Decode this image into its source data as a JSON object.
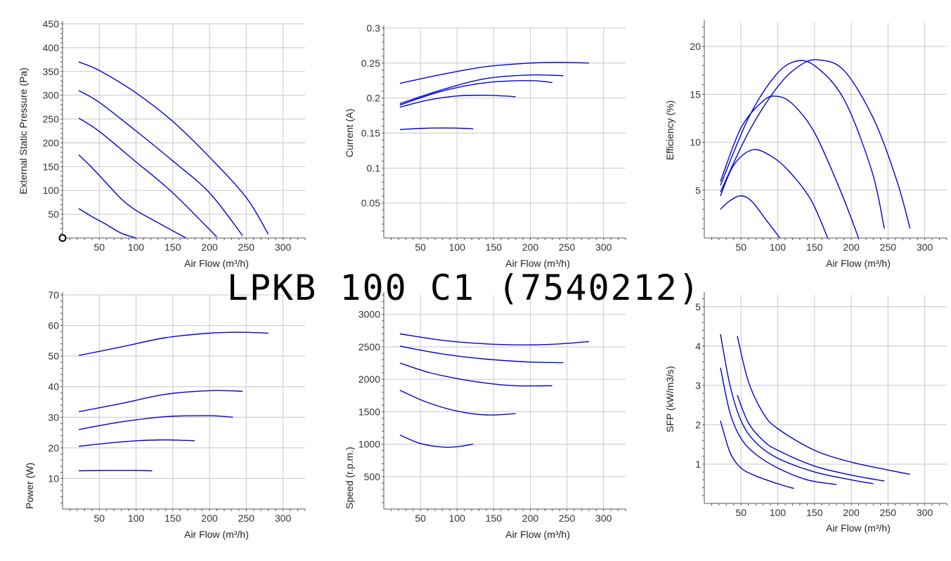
{
  "title": "LPKB 100 C1 (7540212)",
  "colors": {
    "curve": "#0000dd",
    "grid": "#c8c8c8",
    "axis": "#555555"
  },
  "chart_data": [
    {
      "type": "line",
      "name": "pressure",
      "xlabel": "Air Flow (m³/h)",
      "ylabel": "External Static Pressure (Pa)",
      "xlim": [
        0,
        330
      ],
      "ylim": [
        0,
        450
      ],
      "xticks": [
        50,
        100,
        150,
        200,
        250,
        300
      ],
      "yticks": [
        50,
        100,
        150,
        200,
        250,
        300,
        350,
        400,
        450
      ],
      "origin_marker": true,
      "series": [
        {
          "x": [
            22,
            50,
            100,
            150,
            200,
            250,
            280
          ],
          "y": [
            370,
            352,
            305,
            245,
            170,
            85,
            8
          ]
        },
        {
          "x": [
            22,
            50,
            100,
            150,
            200,
            245
          ],
          "y": [
            310,
            285,
            225,
            162,
            95,
            5
          ]
        },
        {
          "x": [
            22,
            50,
            100,
            150,
            210
          ],
          "y": [
            252,
            224,
            160,
            95,
            2
          ]
        },
        {
          "x": [
            22,
            40,
            60,
            80,
            100,
            130,
            168
          ],
          "y": [
            175,
            148,
            115,
            82,
            58,
            32,
            0
          ]
        },
        {
          "x": [
            22,
            40,
            60,
            80,
            100
          ],
          "y": [
            62,
            45,
            28,
            10,
            0
          ]
        }
      ]
    },
    {
      "type": "line",
      "name": "current",
      "xlabel": "Air Flow (m³/h)",
      "ylabel": "Current (A)",
      "xlim": [
        0,
        330
      ],
      "ylim": [
        0,
        0.3
      ],
      "xticks": [
        50,
        100,
        150,
        200,
        250,
        300
      ],
      "yticks": [
        0.05,
        0.1,
        0.15,
        0.2,
        0.25,
        0.3
      ],
      "series": [
        {
          "x": [
            22,
            80,
            140,
            200,
            240,
            280
          ],
          "y": [
            0.221,
            0.234,
            0.245,
            0.25,
            0.251,
            0.25
          ]
        },
        {
          "x": [
            22,
            80,
            140,
            200,
            245
          ],
          "y": [
            0.192,
            0.212,
            0.228,
            0.233,
            0.232
          ]
        },
        {
          "x": [
            22,
            80,
            140,
            200,
            230
          ],
          "y": [
            0.19,
            0.21,
            0.222,
            0.225,
            0.222
          ]
        },
        {
          "x": [
            22,
            60,
            100,
            140,
            180
          ],
          "y": [
            0.187,
            0.197,
            0.203,
            0.204,
            0.202
          ]
        },
        {
          "x": [
            22,
            60,
            100,
            122
          ],
          "y": [
            0.155,
            0.157,
            0.157,
            0.156
          ]
        }
      ]
    },
    {
      "type": "line",
      "name": "efficiency",
      "xlabel": "Air Flow (m³/h)",
      "ylabel": "Efficiency (%)",
      "xlim": [
        0,
        330
      ],
      "ylim": [
        0,
        22.5
      ],
      "xticks": [
        50,
        100,
        150,
        200,
        250,
        300
      ],
      "yticks": [
        5,
        10,
        15,
        20
      ],
      "series": [
        {
          "x": [
            22,
            60,
            100,
            130,
            155,
            190,
            230,
            262,
            280
          ],
          "y": [
            4.8,
            11,
            15.8,
            18,
            18.6,
            17.5,
            12.5,
            6,
            1
          ]
        },
        {
          "x": [
            22,
            60,
            95,
            122,
            150,
            190,
            228,
            245
          ],
          "y": [
            5.5,
            12.5,
            16.8,
            18.4,
            18,
            14.5,
            7,
            1
          ]
        },
        {
          "x": [
            22,
            50,
            80,
            98,
            120,
            150,
            185,
            210
          ],
          "y": [
            5.9,
            11.5,
            14.3,
            14.8,
            14,
            11,
            5,
            0
          ]
        },
        {
          "x": [
            22,
            40,
            65,
            90,
            115,
            145,
            168
          ],
          "y": [
            4.4,
            7.6,
            9.2,
            8.6,
            7,
            4,
            0
          ]
        },
        {
          "x": [
            22,
            35,
            50,
            65,
            85,
            103
          ],
          "y": [
            3,
            3.9,
            4.4,
            3.8,
            1.8,
            0
          ]
        }
      ]
    },
    {
      "type": "line",
      "name": "power",
      "xlabel": "Air Flow (m³/h)",
      "ylabel": "Power (W)",
      "xlim": [
        0,
        330
      ],
      "ylim": [
        0,
        70
      ],
      "xticks": [
        50,
        100,
        150,
        200,
        250,
        300
      ],
      "yticks": [
        10,
        20,
        30,
        40,
        50,
        60,
        70
      ],
      "series": [
        {
          "x": [
            22,
            80,
            140,
            200,
            240,
            280
          ],
          "y": [
            50.2,
            53,
            56,
            57.5,
            57.8,
            57.5
          ]
        },
        {
          "x": [
            22,
            80,
            140,
            200,
            245
          ],
          "y": [
            31.8,
            34.5,
            37.5,
            38.7,
            38.5
          ]
        },
        {
          "x": [
            22,
            80,
            140,
            200,
            232
          ],
          "y": [
            26,
            28.5,
            30.2,
            30.5,
            30
          ]
        },
        {
          "x": [
            22,
            60,
            100,
            140,
            180
          ],
          "y": [
            20.5,
            21.5,
            22.3,
            22.6,
            22.3
          ]
        },
        {
          "x": [
            22,
            60,
            100,
            122
          ],
          "y": [
            12.5,
            12.6,
            12.6,
            12.5
          ]
        }
      ]
    },
    {
      "type": "line",
      "name": "speed",
      "xlabel": "Air Flow (m³/h)",
      "ylabel": "Speed (r.p.m.)",
      "xlim": [
        0,
        330
      ],
      "ylim": [
        0,
        3300
      ],
      "xticks": [
        50,
        100,
        150,
        200,
        250,
        300
      ],
      "yticks": [
        500,
        1000,
        1500,
        2000,
        2500,
        3000
      ],
      "series": [
        {
          "x": [
            22,
            80,
            140,
            200,
            240,
            280
          ],
          "y": [
            2700,
            2600,
            2545,
            2530,
            2545,
            2580
          ]
        },
        {
          "x": [
            22,
            80,
            140,
            200,
            245
          ],
          "y": [
            2510,
            2390,
            2310,
            2265,
            2255
          ]
        },
        {
          "x": [
            22,
            60,
            100,
            140,
            180,
            230
          ],
          "y": [
            2250,
            2110,
            2010,
            1940,
            1900,
            1900
          ]
        },
        {
          "x": [
            22,
            60,
            100,
            140,
            180
          ],
          "y": [
            1830,
            1640,
            1510,
            1450,
            1470
          ]
        },
        {
          "x": [
            22,
            50,
            80,
            100,
            122
          ],
          "y": [
            1140,
            1010,
            955,
            960,
            1000
          ]
        }
      ]
    },
    {
      "type": "line",
      "name": "sfp",
      "xlabel": "Air Flow (m³/h)",
      "ylabel": "SFP (kW/m3/s)",
      "xlim": [
        0,
        330
      ],
      "ylim": [
        0,
        5.3
      ],
      "xticks": [
        50,
        100,
        150,
        200,
        250,
        300
      ],
      "yticks": [
        1,
        2,
        3,
        4,
        5
      ],
      "series": [
        {
          "x": [
            45,
            60,
            80,
            100,
            150,
            200,
            250,
            280
          ],
          "y": [
            4.25,
            3.1,
            2.3,
            1.9,
            1.35,
            1.05,
            0.85,
            0.74
          ]
        },
        {
          "x": [
            45,
            60,
            80,
            100,
            150,
            200,
            245
          ],
          "y": [
            2.75,
            2.05,
            1.6,
            1.35,
            0.95,
            0.72,
            0.57
          ]
        },
        {
          "x": [
            22,
            35,
            50,
            70,
            100,
            150,
            200,
            230
          ],
          "y": [
            4.3,
            3.0,
            2.1,
            1.55,
            1.15,
            0.8,
            0.6,
            0.5
          ]
        },
        {
          "x": [
            22,
            35,
            50,
            70,
            100,
            140,
            180
          ],
          "y": [
            3.45,
            2.3,
            1.65,
            1.25,
            0.9,
            0.6,
            0.48
          ]
        },
        {
          "x": [
            22,
            35,
            50,
            70,
            100,
            122
          ],
          "y": [
            2.1,
            1.3,
            0.9,
            0.7,
            0.5,
            0.38
          ]
        }
      ]
    }
  ]
}
